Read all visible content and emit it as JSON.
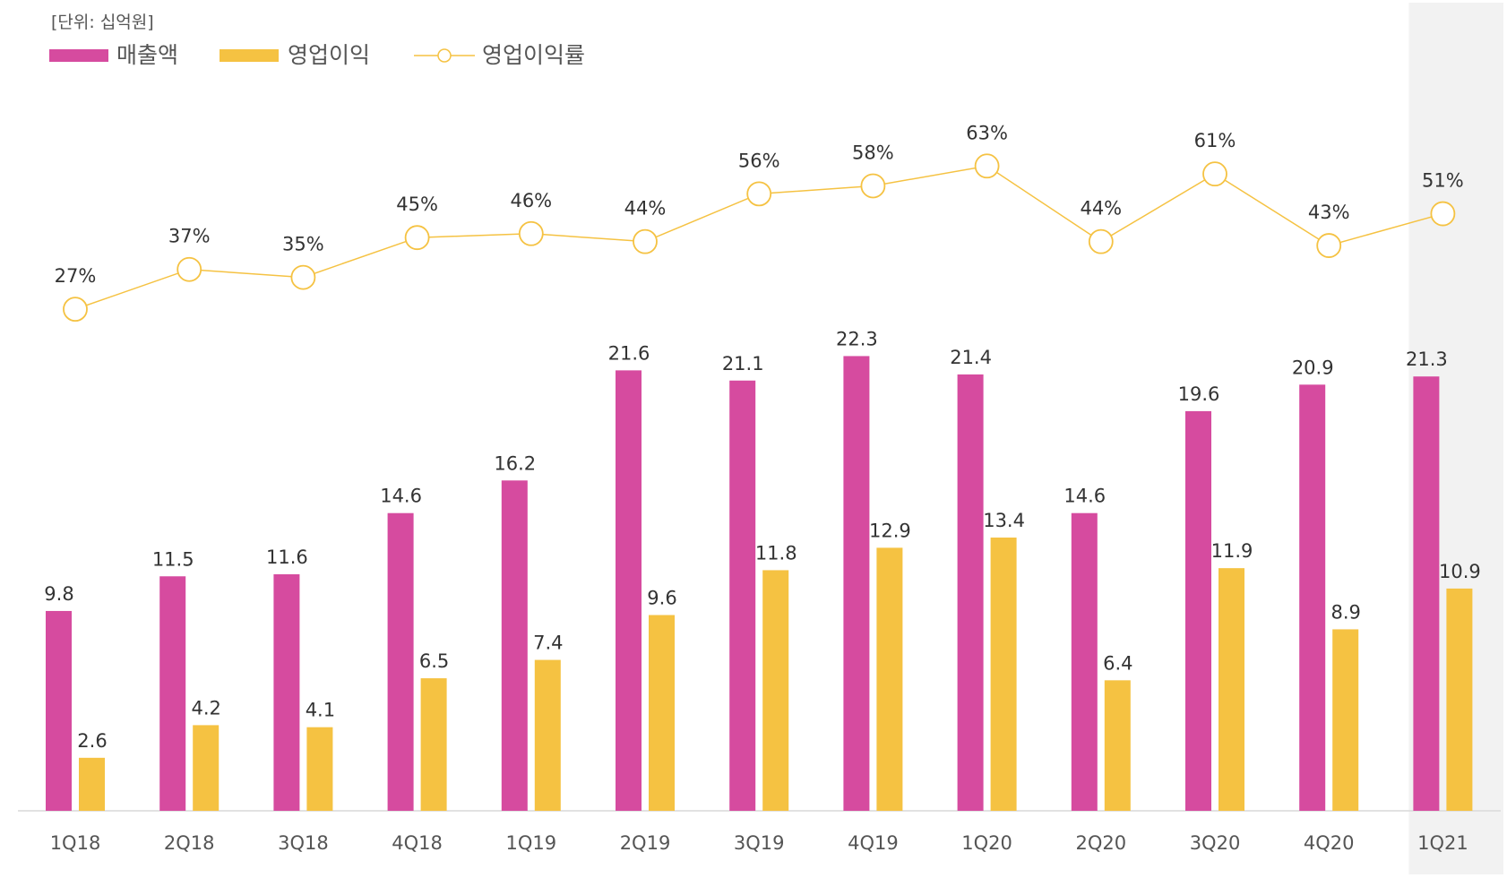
{
  "chart_data": {
    "type": "bar",
    "unit_label": "[단위: 십억원]",
    "categories": [
      "1Q18",
      "2Q18",
      "3Q18",
      "4Q18",
      "1Q19",
      "2Q19",
      "3Q19",
      "4Q19",
      "1Q20",
      "2Q20",
      "3Q20",
      "4Q20",
      "1Q21"
    ],
    "series": [
      {
        "name": "매출액",
        "type": "bar",
        "color": "#d64b9f",
        "values": [
          9.8,
          11.5,
          11.6,
          14.6,
          16.2,
          21.6,
          21.1,
          22.3,
          21.4,
          14.6,
          19.6,
          20.9,
          21.3
        ]
      },
      {
        "name": "영업이익",
        "type": "bar",
        "color": "#f5c242",
        "values": [
          2.6,
          4.2,
          4.1,
          6.5,
          7.4,
          9.6,
          11.8,
          12.9,
          13.4,
          6.4,
          11.9,
          8.9,
          10.9
        ]
      },
      {
        "name": "영업이익률",
        "type": "line",
        "color": "#f5c242",
        "unit": "%",
        "values": [
          27,
          37,
          35,
          45,
          46,
          44,
          56,
          58,
          63,
          44,
          61,
          43,
          51
        ]
      }
    ],
    "highlighted_category": "1Q21",
    "highlight_color": "#f2f2f2",
    "legend_position": "top-left",
    "grid": false
  }
}
